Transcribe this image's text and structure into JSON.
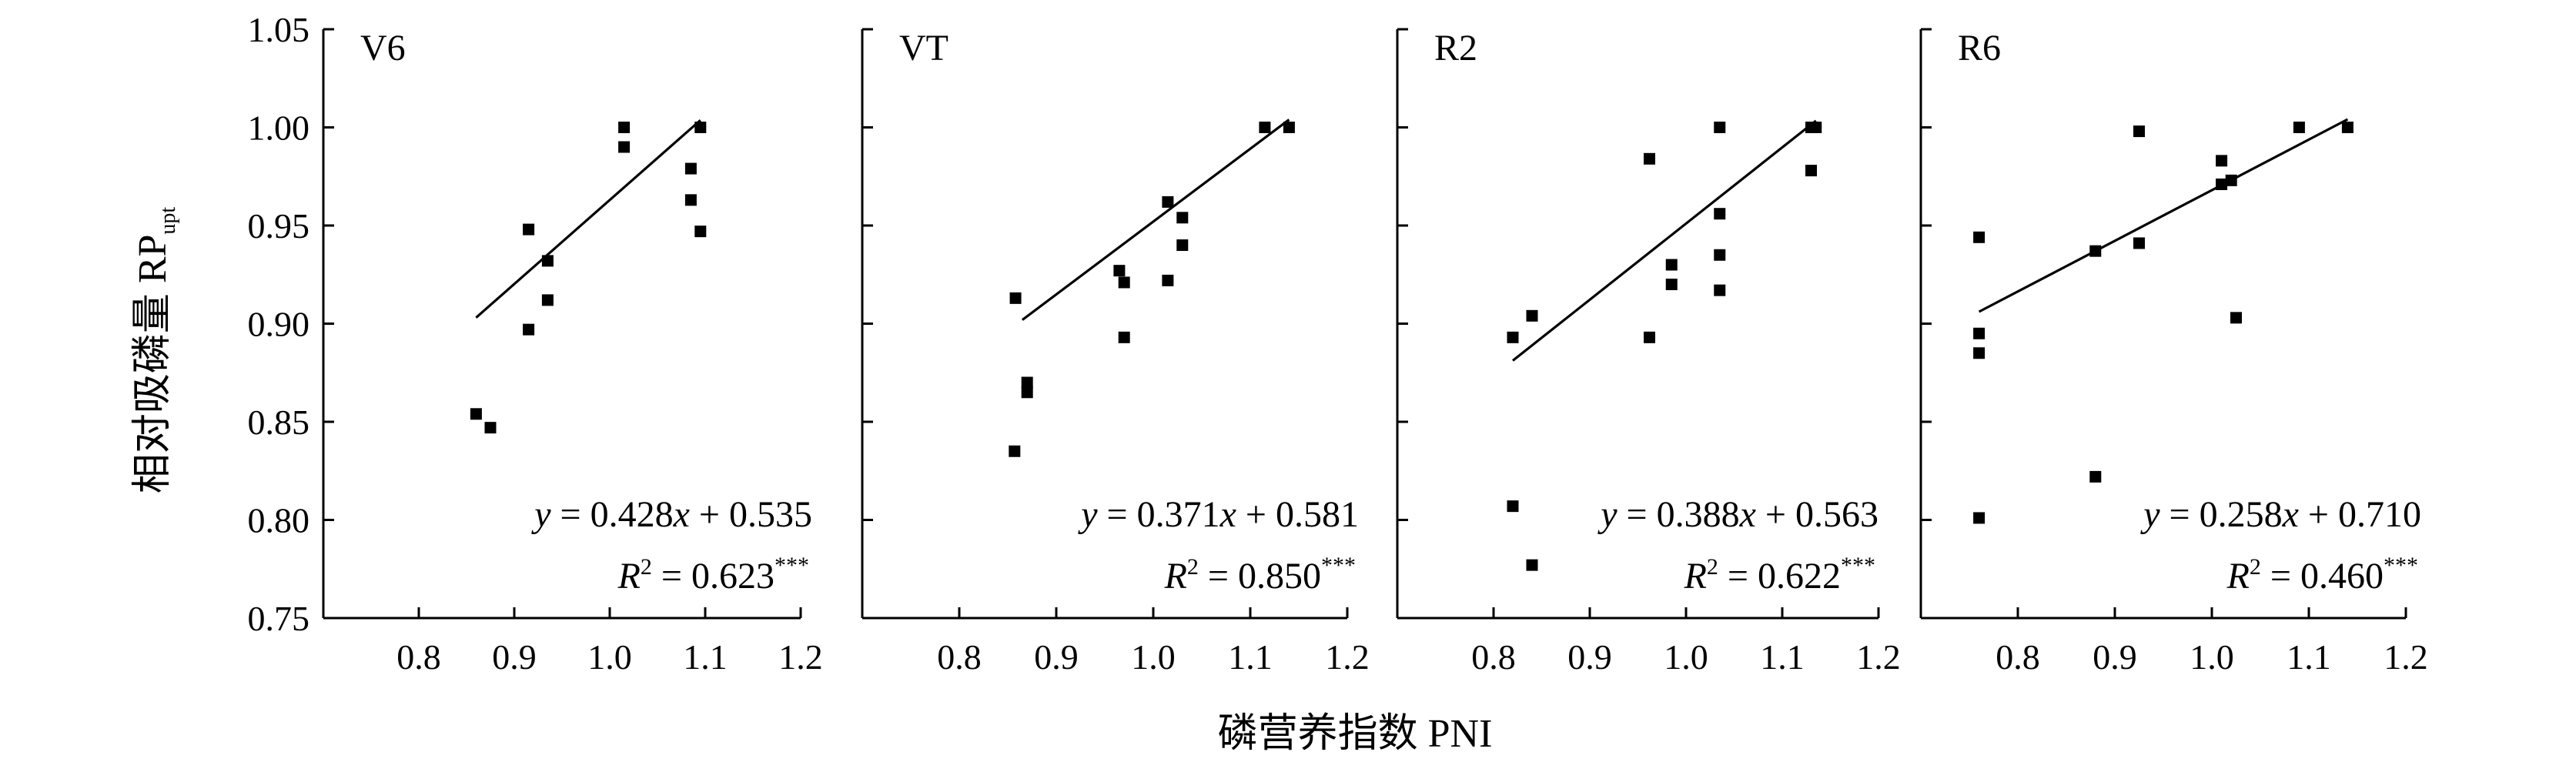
{
  "figure": {
    "ylabel_main": "相对吸磷量 RP",
    "ylabel_sub": "upt",
    "xlabel": "磷营养指数  PNI"
  },
  "chart_data": [
    {
      "type": "scatter",
      "panel": "V6",
      "xlim": [
        0.7,
        1.2
      ],
      "ylim": [
        0.75,
        1.05
      ],
      "xticks": [
        "0.8",
        "0.9",
        "1.0",
        "1.1",
        "1.2"
      ],
      "yticks": [
        "0.75",
        "0.80",
        "0.85",
        "0.90",
        "0.95",
        "1.00",
        "1.05"
      ],
      "points": [
        [
          0.86,
          0.854
        ],
        [
          0.875,
          0.847
        ],
        [
          0.915,
          0.948
        ],
        [
          0.935,
          0.932
        ],
        [
          0.935,
          0.912
        ],
        [
          0.915,
          0.897
        ],
        [
          1.015,
          1.0
        ],
        [
          1.015,
          0.99
        ],
        [
          1.085,
          0.979
        ],
        [
          1.085,
          0.963
        ],
        [
          1.095,
          1.0
        ],
        [
          1.095,
          0.947
        ]
      ],
      "fit": {
        "slope": 0.428,
        "intercept": 0.535,
        "x_range": [
          0.86,
          1.095
        ]
      },
      "equation": {
        "y_prefix": "y",
        "y_eq": " = 0.428",
        "x_var": "x",
        "x_tail": " + 0.535",
        "r_prefix": "R",
        "r_sup": "2",
        "r_eq": " = 0.623",
        "r_stars": "***"
      }
    },
    {
      "type": "scatter",
      "panel": "VT",
      "xlim": [
        0.7,
        1.2
      ],
      "ylim": [
        0.75,
        1.05
      ],
      "xticks": [
        "0.8",
        "0.9",
        "1.0",
        "1.1",
        "1.2"
      ],
      "yticks": [],
      "points": [
        [
          0.858,
          0.913
        ],
        [
          0.857,
          0.835
        ],
        [
          0.87,
          0.87
        ],
        [
          0.87,
          0.865
        ],
        [
          0.965,
          0.927
        ],
        [
          0.97,
          0.921
        ],
        [
          0.97,
          0.893
        ],
        [
          1.015,
          0.962
        ],
        [
          1.015,
          0.922
        ],
        [
          1.03,
          0.954
        ],
        [
          1.03,
          0.94
        ],
        [
          1.115,
          1.0
        ],
        [
          1.14,
          1.0
        ]
      ],
      "fit": {
        "slope": 0.371,
        "intercept": 0.581,
        "x_range": [
          0.865,
          1.14
        ]
      },
      "equation": {
        "y_prefix": "y",
        "y_eq": " = 0.371",
        "x_var": "x",
        "x_tail": " + 0.581",
        "r_prefix": "R",
        "r_sup": "2",
        "r_eq": " = 0.850",
        "r_stars": "***"
      }
    },
    {
      "type": "scatter",
      "panel": "R2",
      "xlim": [
        0.7,
        1.2
      ],
      "ylim": [
        0.75,
        1.05
      ],
      "xticks": [
        "0.8",
        "0.9",
        "1.0",
        "1.1",
        "1.2"
      ],
      "yticks": [],
      "points": [
        [
          0.82,
          0.893
        ],
        [
          0.84,
          0.904
        ],
        [
          0.82,
          0.807
        ],
        [
          0.84,
          0.777
        ],
        [
          0.962,
          0.984
        ],
        [
          0.962,
          0.893
        ],
        [
          0.985,
          0.93
        ],
        [
          0.985,
          0.92
        ],
        [
          1.035,
          1.0
        ],
        [
          1.035,
          0.956
        ],
        [
          1.035,
          0.935
        ],
        [
          1.035,
          0.917
        ],
        [
          1.13,
          1.0
        ],
        [
          1.135,
          1.0
        ],
        [
          1.13,
          0.978
        ]
      ],
      "fit": {
        "slope": 0.388,
        "intercept": 0.563,
        "x_range": [
          0.82,
          1.135
        ]
      },
      "equation": {
        "y_prefix": "y",
        "y_eq": " = 0.388",
        "x_var": "x",
        "x_tail": " + 0.563",
        "r_prefix": "R",
        "r_sup": "2",
        "r_eq": " = 0.622",
        "r_stars": "***"
      }
    },
    {
      "type": "scatter",
      "panel": "R6",
      "xlim": [
        0.7,
        1.2
      ],
      "ylim": [
        0.75,
        1.05
      ],
      "xticks": [
        "0.8",
        "0.9",
        "1.0",
        "1.1",
        "1.2"
      ],
      "yticks": [],
      "points": [
        [
          0.76,
          0.944
        ],
        [
          0.76,
          0.895
        ],
        [
          0.76,
          0.885
        ],
        [
          0.76,
          0.801
        ],
        [
          0.88,
          0.937
        ],
        [
          0.88,
          0.822
        ],
        [
          0.925,
          0.998
        ],
        [
          0.925,
          0.941
        ],
        [
          1.01,
          0.983
        ],
        [
          1.01,
          0.971
        ],
        [
          1.02,
          0.973
        ],
        [
          1.025,
          0.903
        ],
        [
          1.09,
          1.0
        ],
        [
          1.14,
          1.0
        ]
      ],
      "fit": {
        "slope": 0.258,
        "intercept": 0.71,
        "x_range": [
          0.76,
          1.14
        ]
      },
      "equation": {
        "y_prefix": "y",
        "y_eq": " = 0.258",
        "x_var": "x",
        "x_tail": " + 0.710",
        "r_prefix": "R",
        "r_sup": "2",
        "r_eq": " = 0.460",
        "r_stars": "***"
      }
    }
  ]
}
